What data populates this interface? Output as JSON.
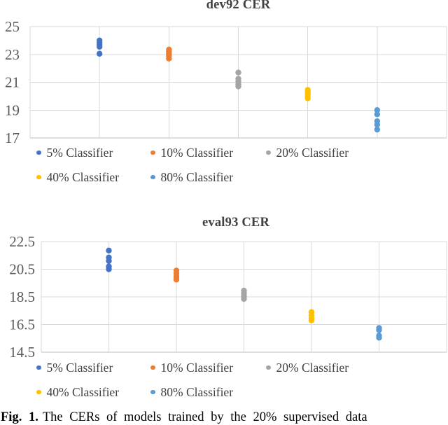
{
  "page": {
    "caption": {
      "prefix": "Fig. 1.",
      "text": "The CERs of models trained by the 20% supervised data"
    }
  },
  "colors": {
    "series_blue": "#4472C4",
    "series_orange": "#ED7D31",
    "series_gray": "#A5A5A5",
    "series_yellow": "#FFC000",
    "series_lightblue": "#5B9BD5",
    "gridline": "#D9D9D9",
    "axis_line": "#BFBFBF",
    "tick_label": "#595959",
    "title_text": "#404040"
  },
  "chart_data": [
    {
      "type": "scatter",
      "title": "dev92 CER",
      "xlabel": "",
      "ylabel": "",
      "ylim": [
        17,
        25
      ],
      "yticks": [
        25,
        23,
        21,
        19,
        17
      ],
      "grid": true,
      "legend_position": "bottom",
      "series": [
        {
          "name": "5% Classifier",
          "color": "#4472C4",
          "x": 1,
          "values": [
            24.0,
            23.85,
            23.7,
            23.55,
            23.05
          ]
        },
        {
          "name": "10% Classifier",
          "color": "#ED7D31",
          "x": 2,
          "values": [
            23.35,
            23.2,
            23.05,
            22.9,
            22.7
          ]
        },
        {
          "name": "20% Classifier",
          "color": "#A5A5A5",
          "x": 3,
          "values": [
            21.7,
            21.25,
            21.05,
            20.85,
            20.7
          ]
        },
        {
          "name": "40% Classifier",
          "color": "#FFC000",
          "x": 4,
          "values": [
            20.45,
            20.3,
            20.15,
            20.0,
            19.85
          ]
        },
        {
          "name": "80% Classifier",
          "color": "#5B9BD5",
          "x": 5,
          "values": [
            19.0,
            18.7,
            18.2,
            17.95,
            17.6
          ]
        }
      ]
    },
    {
      "type": "scatter",
      "title": "eval93 CER",
      "xlabel": "",
      "ylabel": "",
      "ylim": [
        14.5,
        22.5
      ],
      "yticks": [
        22.5,
        20.5,
        18.5,
        16.5,
        14.5
      ],
      "grid": true,
      "legend_position": "bottom",
      "series": [
        {
          "name": "5% Classifier",
          "color": "#4472C4",
          "x": 1,
          "values": [
            21.85,
            21.35,
            21.1,
            20.7,
            20.5
          ]
        },
        {
          "name": "10% Classifier",
          "color": "#ED7D31",
          "x": 2,
          "values": [
            20.4,
            20.2,
            20.0,
            19.85,
            19.75
          ]
        },
        {
          "name": "20% Classifier",
          "color": "#A5A5A5",
          "x": 3,
          "values": [
            18.95,
            18.75,
            18.55,
            18.35
          ]
        },
        {
          "name": "40% Classifier",
          "color": "#FFC000",
          "x": 4,
          "values": [
            17.4,
            17.15,
            16.95,
            16.8
          ]
        },
        {
          "name": "80% Classifier",
          "color": "#5B9BD5",
          "x": 5,
          "values": [
            16.25,
            16.1,
            15.7,
            15.55
          ]
        }
      ]
    }
  ]
}
